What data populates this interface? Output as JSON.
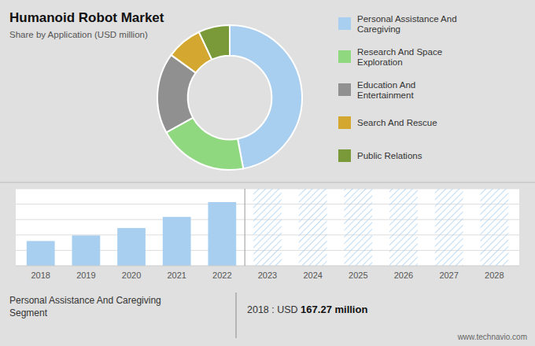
{
  "chart_data": [
    {
      "type": "pie",
      "title": "Humanoid Robot Market",
      "subtitle": "Share by Application (USD million)",
      "categories": [
        "Personal Assistance And\nCaregiving",
        "Research And Space\nExploration",
        "Education And\nEntertainment",
        "Search And Rescue",
        "Public Relations"
      ],
      "values": [
        47,
        20,
        18,
        8,
        7
      ],
      "colors": [
        "#a8cff0",
        "#90d880",
        "#909090",
        "#d4a830",
        "#7a9a3a"
      ],
      "legend": "right"
    },
    {
      "type": "bar",
      "categories": [
        "2018",
        "2019",
        "2020",
        "2021",
        "2022",
        "2023",
        "2024",
        "2025",
        "2026",
        "2027",
        "2028"
      ],
      "values": [
        167.27,
        205,
        255,
        330,
        430,
        null,
        null,
        null,
        null,
        null,
        null
      ],
      "color": "#a8cff0",
      "ylim": [
        0,
        520
      ],
      "yticks": [
        0,
        104,
        208,
        312,
        416,
        520
      ],
      "grid": true,
      "tick_labels": "x",
      "annotations": [
        "Personal Assistance And Caregiving\nSegment",
        "2018 : USD ",
        "167.27 million",
        "www.technavio.com"
      ]
    }
  ]
}
